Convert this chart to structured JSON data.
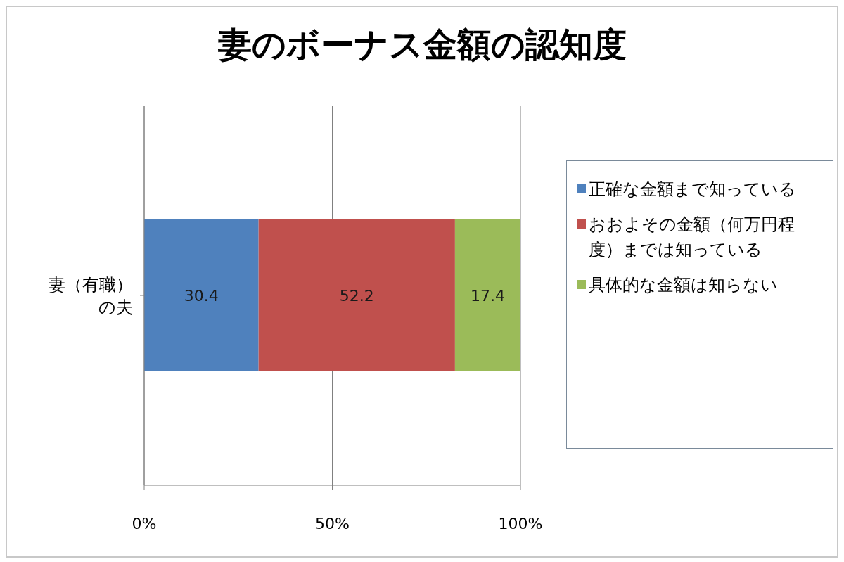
{
  "chart_data": {
    "type": "bar",
    "orientation": "horizontal",
    "stacked": true,
    "title": "妻のボーナス金額の認知度",
    "categories": [
      "妻（有職）の夫"
    ],
    "series": [
      {
        "name": "正確な金額まで知っている",
        "color": "#4f81bd",
        "values": [
          30.4
        ]
      },
      {
        "name": "おおよその金額（何万円程度）までは知っている",
        "color": "#c0504d",
        "values": [
          52.2
        ]
      },
      {
        "name": "具体的な金額は知らない",
        "color": "#9bbb59",
        "values": [
          17.4
        ]
      }
    ],
    "xlim": [
      0,
      100
    ],
    "xticks": [
      {
        "value": 0,
        "label": "0%"
      },
      {
        "value": 50,
        "label": "50%"
      },
      {
        "value": 100,
        "label": "100%"
      }
    ],
    "grid": "x",
    "legend": "right",
    "data_labels": true
  }
}
